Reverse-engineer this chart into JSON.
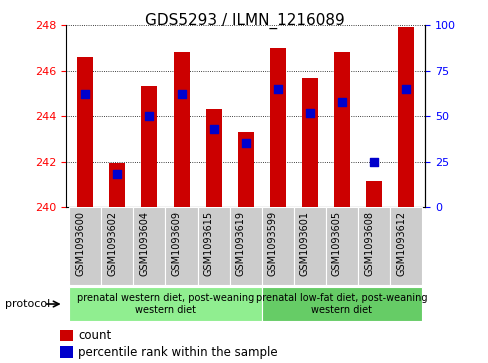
{
  "title": "GDS5293 / ILMN_1216089",
  "samples": [
    "GSM1093600",
    "GSM1093602",
    "GSM1093604",
    "GSM1093609",
    "GSM1093615",
    "GSM1093619",
    "GSM1093599",
    "GSM1093601",
    "GSM1093605",
    "GSM1093608",
    "GSM1093612"
  ],
  "count_values": [
    246.6,
    241.95,
    245.35,
    246.85,
    244.3,
    243.3,
    247.0,
    245.7,
    246.85,
    241.15,
    247.95
  ],
  "percentile_values": [
    62,
    18,
    50,
    62,
    43,
    35,
    65,
    52,
    58,
    25,
    65
  ],
  "ylim_left": [
    240,
    248
  ],
  "ylim_right": [
    0,
    100
  ],
  "yticks_left": [
    240,
    242,
    244,
    246,
    248
  ],
  "yticks_right": [
    0,
    25,
    50,
    75,
    100
  ],
  "bar_color": "#cc0000",
  "dot_color": "#0000cc",
  "plot_bg_color": "#ffffff",
  "group1_label": "prenatal western diet, post-weaning\nwestern diet",
  "group2_label": "prenatal low-fat diet, post-weaning\nwestern diet",
  "group1_color": "#90ee90",
  "group2_color": "#66cc66",
  "sample_cell_color": "#cccccc",
  "group1_count": 6,
  "group2_count": 5,
  "protocol_label": "protocol",
  "legend_count_label": "count",
  "legend_pct_label": "percentile rank within the sample",
  "bar_width": 0.5,
  "dot_size": 30,
  "tick_fontsize": 8,
  "title_fontsize": 11
}
